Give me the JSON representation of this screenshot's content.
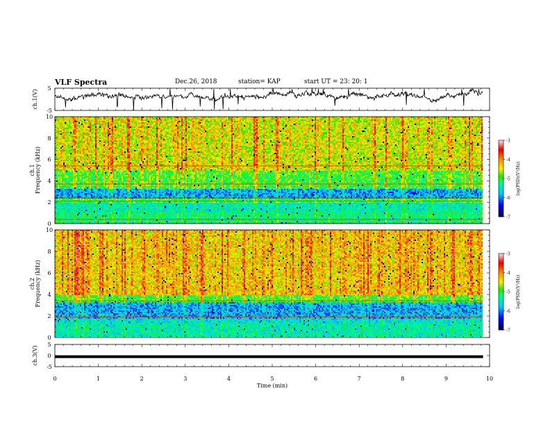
{
  "header": {
    "title": "VLF Spectra",
    "date": "Dec.26, 2018",
    "station": "station= KAP",
    "start": "start  UT  =   23: 20: 1"
  },
  "chart_data": [
    {
      "type": "line",
      "panel": "ch1-waveform",
      "ylabel": "ch.1(V)",
      "ylim": [
        -5,
        5
      ],
      "yticks": [
        "5",
        "-5"
      ],
      "xlim": [
        0,
        10
      ],
      "x_extent_min": [
        0,
        9.85
      ],
      "approx_level_V": [
        0.5,
        2.5
      ],
      "color": "#000000"
    },
    {
      "type": "heatmap",
      "panel": "ch1-spectrogram",
      "ylabel": "ch.1\nFrequency (kHz)",
      "ylim": [
        0,
        10
      ],
      "yticks": [
        "0",
        "2",
        "4",
        "6",
        "8",
        "10"
      ],
      "xlim": [
        0,
        10
      ],
      "x_extent_min": [
        0,
        9.85
      ],
      "colorbar": {
        "label": "log(PSD)(V²/Hz)",
        "range": [
          -7,
          -3
        ],
        "ticks": [
          "-3",
          "-4",
          "-5",
          "-6",
          "-7"
        ]
      },
      "bands_kHz": [
        {
          "range": [
            0,
            1
          ],
          "level": "green-cyan"
        },
        {
          "range": [
            1,
            2
          ],
          "level": "cyan-green"
        },
        {
          "range": [
            2,
            2.3
          ],
          "level": "green"
        },
        {
          "range": [
            2.3,
            3.3
          ],
          "level": "cyan-blue"
        },
        {
          "range": [
            3.3,
            5
          ],
          "level": "green"
        },
        {
          "range": [
            5,
            10
          ],
          "level": "green-yellow-red"
        }
      ],
      "lines_kHz": [
        0.4,
        2.1,
        2.4,
        3.7,
        5.4
      ]
    },
    {
      "type": "heatmap",
      "panel": "ch2-spectrogram",
      "ylabel": "ch.2\nFrequency (kHz)",
      "ylim": [
        0,
        10
      ],
      "yticks": [
        "0",
        "2",
        "4",
        "6",
        "8",
        "10"
      ],
      "xlim": [
        0,
        10
      ],
      "x_extent_min": [
        0,
        9.85
      ],
      "colorbar": {
        "label": "log(PSD)(V²/Hz)",
        "range": [
          -7,
          -3
        ],
        "ticks": [
          "-3",
          "-4",
          "-5",
          "-6",
          "-7"
        ]
      },
      "bands_kHz": [
        {
          "range": [
            0,
            1.3
          ],
          "level": "cyan-green"
        },
        {
          "range": [
            1.3,
            1.8
          ],
          "level": "cyan"
        },
        {
          "range": [
            1.8,
            3.3
          ],
          "level": "cyan-blue"
        },
        {
          "range": [
            3.3,
            4
          ],
          "level": "green"
        },
        {
          "range": [
            4,
            10
          ],
          "level": "yellow-red"
        }
      ],
      "lines_kHz": [
        1.9,
        3.4
      ]
    },
    {
      "type": "line",
      "panel": "ch3-waveform",
      "ylabel": "ch.3(V)",
      "ylim": [
        -5,
        5
      ],
      "yticks": [
        "5",
        "0",
        "-5"
      ],
      "xlim": [
        0,
        10
      ],
      "x_extent_min": [
        0,
        9.85
      ],
      "constant_V": -0.5,
      "xlabel": "Time (min)",
      "xticks": [
        "0",
        "1",
        "2",
        "3",
        "4",
        "5",
        "6",
        "7",
        "8",
        "9",
        "10"
      ]
    }
  ]
}
